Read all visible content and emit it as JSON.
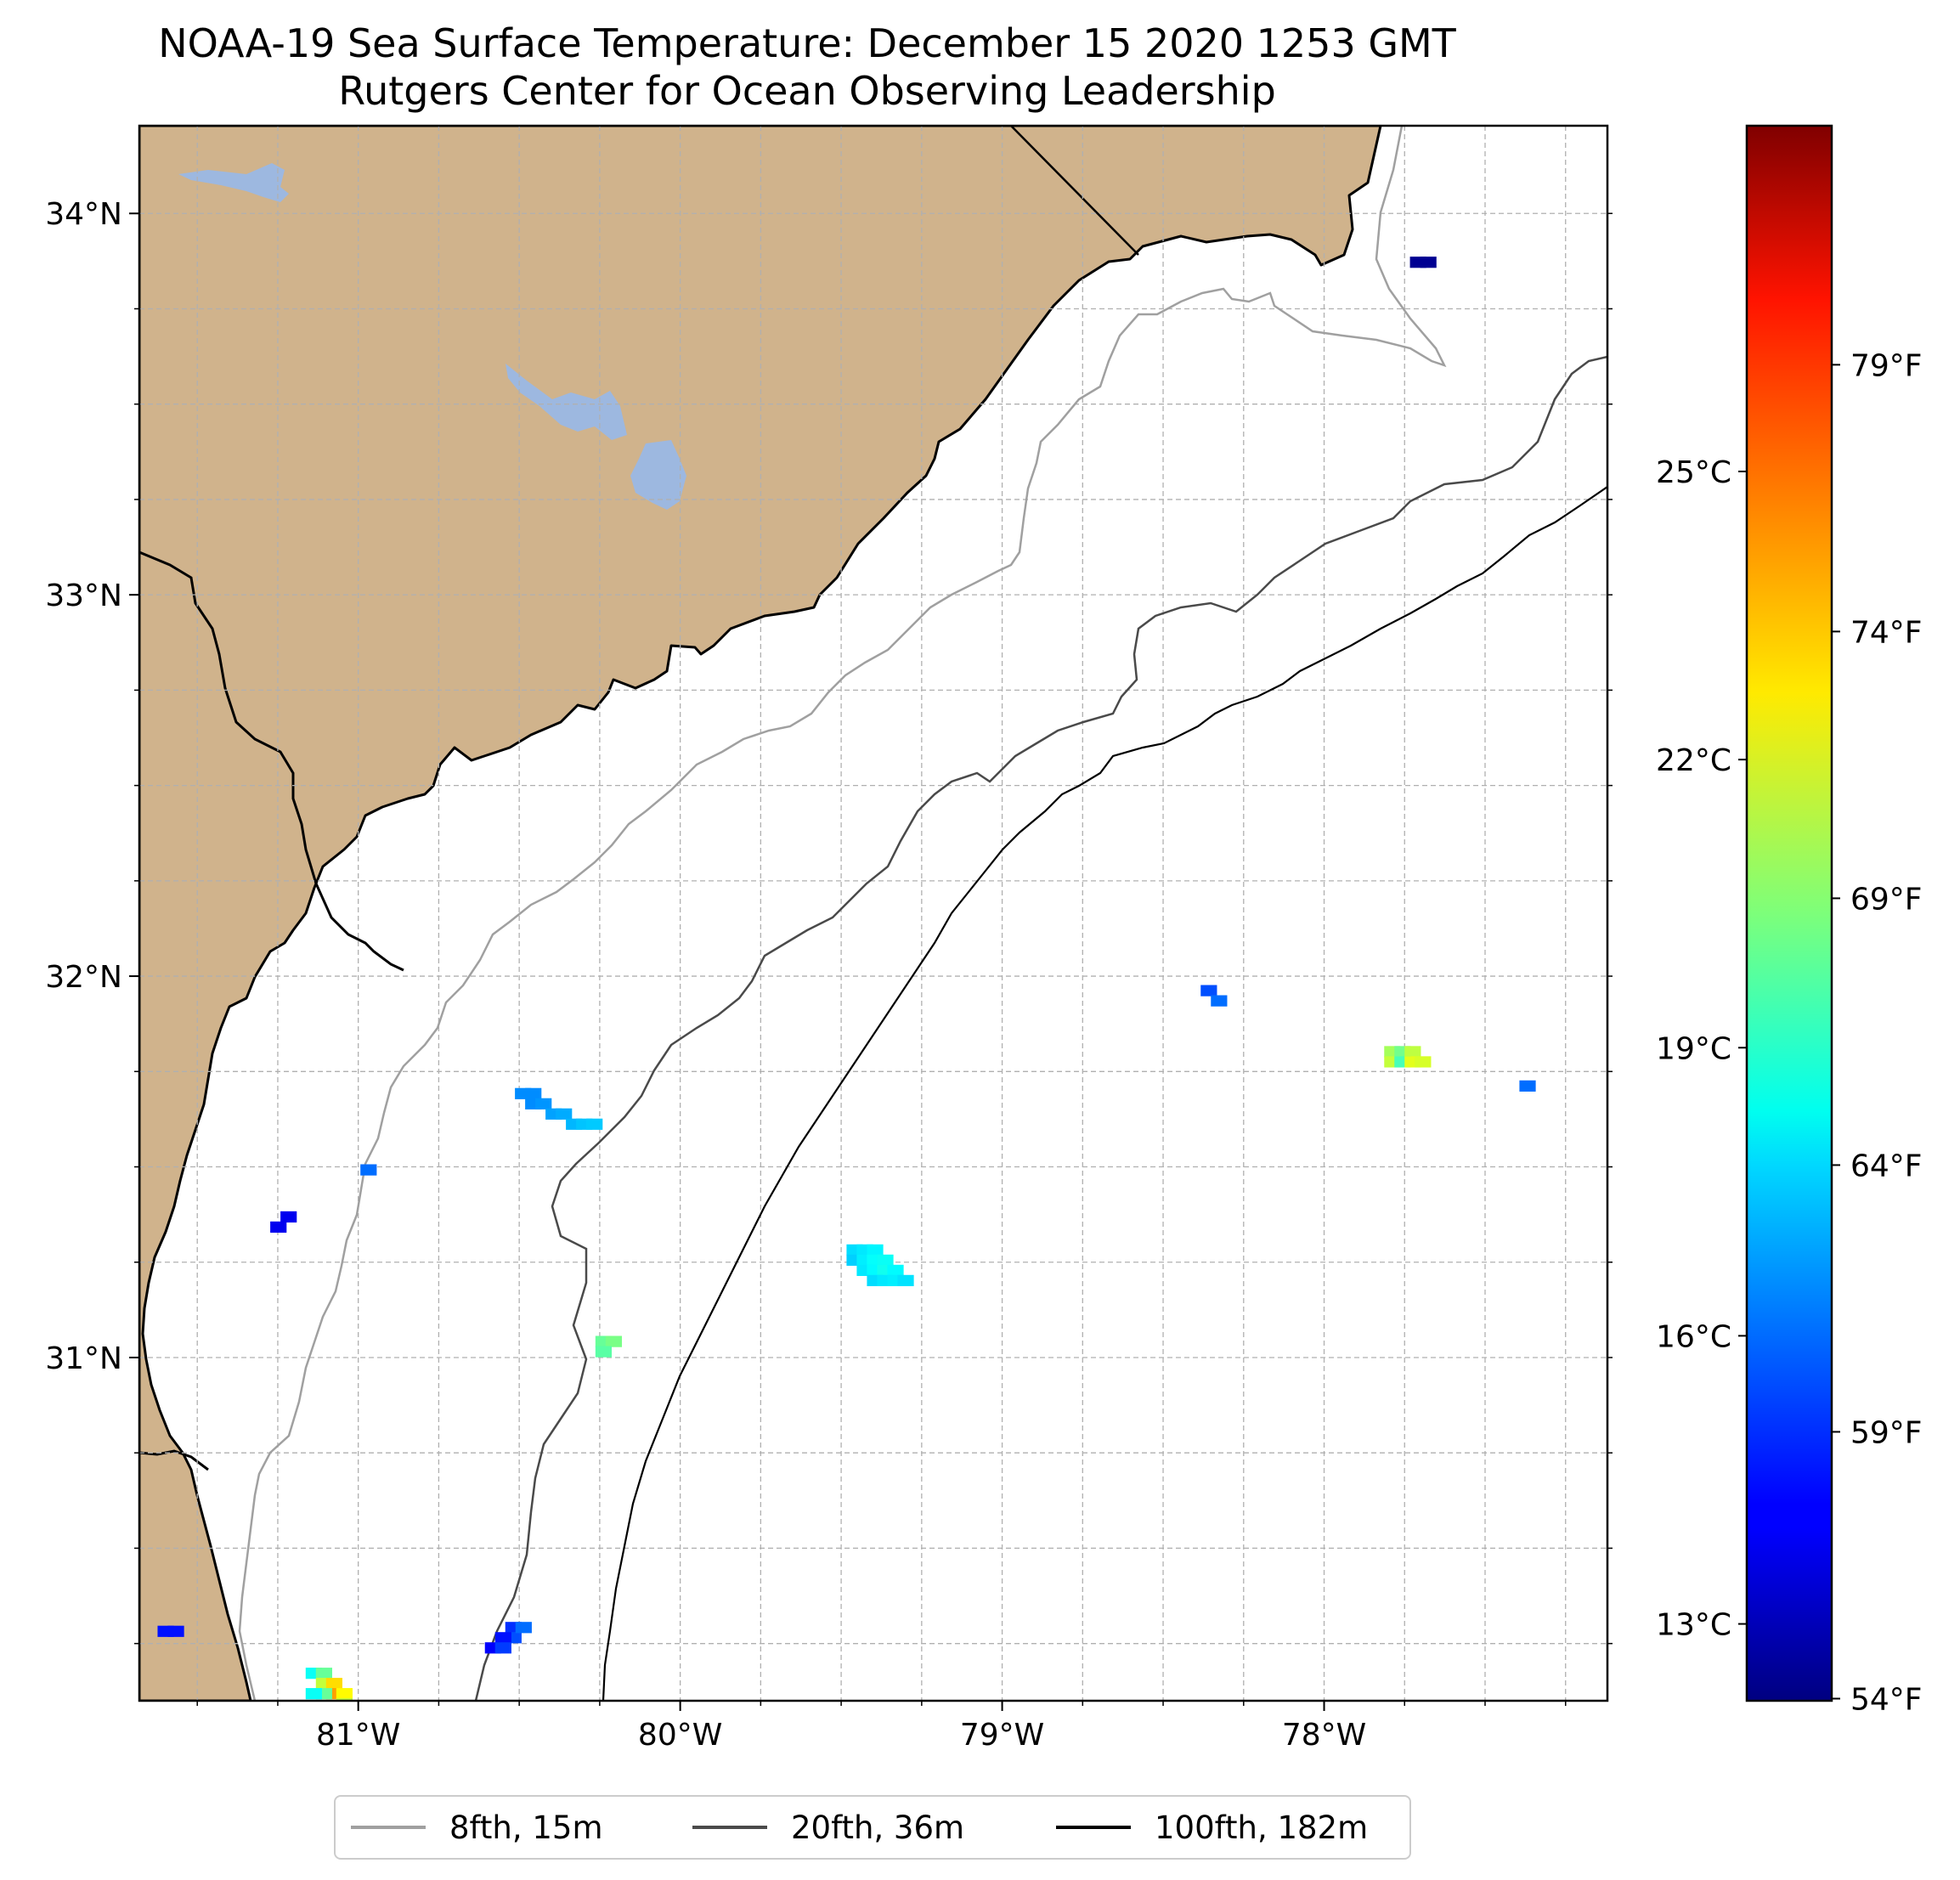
{
  "title": "NOAA-19 Sea Surface Temperature: December 15 2020 1253 GMT",
  "subtitle": "Rutgers Center for Ocean Observing Leadership",
  "map": {
    "lon_range": [
      -81.68,
      -77.12
    ],
    "lat_range": [
      30.1,
      34.23
    ],
    "lat_ticks": [
      {
        "value": 34,
        "label": "34°N"
      },
      {
        "value": 33,
        "label": "33°N"
      },
      {
        "value": 32,
        "label": "32°N"
      },
      {
        "value": 31,
        "label": "31°N"
      }
    ],
    "lon_ticks": [
      {
        "value": -81,
        "label": "81°W"
      },
      {
        "value": -80,
        "label": "80°W"
      },
      {
        "value": -79,
        "label": "79°W"
      },
      {
        "value": -78,
        "label": "78°W"
      }
    ],
    "land_color": "#d0b38c",
    "water_color": "#9db8e0",
    "ocean_color": "#ffffff",
    "gridlines": "dashed"
  },
  "colorbar": {
    "colormap": "jet",
    "range_c": [
      12.2,
      28.6
    ],
    "celsius_ticks": [
      "25°C",
      "22°C",
      "19°C",
      "16°C",
      "13°C"
    ],
    "fahrenheit_ticks": [
      "79°F",
      "74°F",
      "69°F",
      "64°F",
      "59°F",
      "54°F"
    ]
  },
  "sst_patches": [
    {
      "lon": -80.45,
      "lat": 31.68,
      "temp_c": 15.5
    },
    {
      "lon": -79.42,
      "lat": 31.27,
      "temp_c": 17.8
    },
    {
      "lon": -77.75,
      "lat": 31.79,
      "temp_c": 21.0
    },
    {
      "lon": -81.1,
      "lat": 30.16,
      "temp_c": 19.5
    },
    {
      "lon": -80.48,
      "lat": 30.28,
      "temp_c": 15.0
    },
    {
      "lon": -80.2,
      "lat": 31.03,
      "temp_c": 20.0
    },
    {
      "lon": -78.32,
      "lat": 31.95,
      "temp_c": 15.5
    },
    {
      "lon": -77.33,
      "lat": 31.7,
      "temp_c": 16.0
    },
    {
      "lon": -77.67,
      "lat": 33.86,
      "temp_c": 12.5
    },
    {
      "lon": -80.93,
      "lat": 31.48,
      "temp_c": 16.0
    },
    {
      "lon": -81.21,
      "lat": 31.33,
      "temp_c": 14.0
    },
    {
      "lon": -81.56,
      "lat": 30.27,
      "temp_c": 14.5
    }
  ],
  "legend": [
    {
      "label": "8fth, 15m",
      "color": "#a0a0a0"
    },
    {
      "label": "20fth, 36m",
      "color": "#4a4a4a"
    },
    {
      "label": "100fth, 182m",
      "color": "#000000"
    }
  ]
}
